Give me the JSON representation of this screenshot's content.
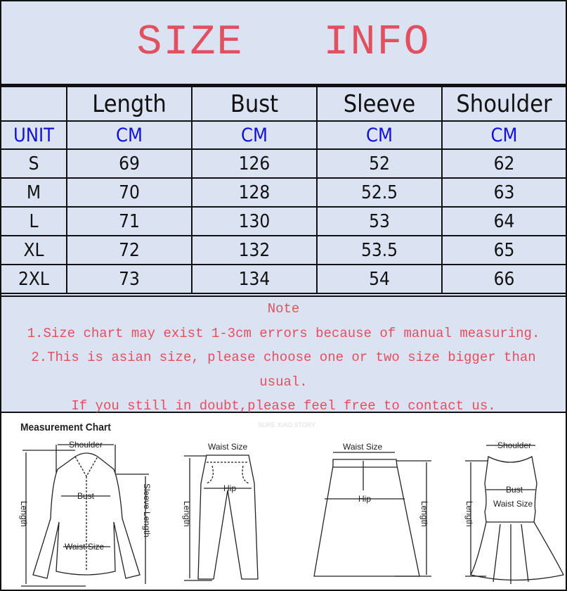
{
  "title": "SIZE   INFO",
  "colors": {
    "background": "#dbe3f2",
    "title_red": "#e0505e",
    "unit_blue": "#1010d8"
  },
  "table": {
    "headers": [
      "",
      "Length",
      "Bust",
      "Sleeve",
      "Shoulder"
    ],
    "units": [
      "UNIT",
      "CM",
      "CM",
      "CM",
      "CM"
    ],
    "rows": [
      [
        "S",
        "69",
        "126",
        "52",
        "62"
      ],
      [
        "M",
        "70",
        "128",
        "52.5",
        "63"
      ],
      [
        "L",
        "71",
        "130",
        "53",
        "64"
      ],
      [
        "XL",
        "72",
        "132",
        "53.5",
        "65"
      ],
      [
        "2XL",
        "73",
        "134",
        "54",
        "66"
      ]
    ]
  },
  "note": {
    "heading": "Note",
    "lines": [
      "1.Size chart may exist 1-3cm errors because of manual measuring.",
      "2.This is asian size, please choose one or two size bigger than",
      "usual.",
      "If you still in doubt,please feel free to contact us."
    ]
  },
  "measurement_chart": {
    "title": "Measurement Chart",
    "watermark": "SURE XIAO STORY",
    "shirt": {
      "shoulder": "Shoulder",
      "bust": "Bust",
      "waist": "Waist Size",
      "length": "Length",
      "sleeve": "Sleeve Length"
    },
    "pants": {
      "waist": "Waist Size",
      "hip": "Hip",
      "length": "Length"
    },
    "skirt": {
      "waist": "Waist Size",
      "hip": "Hip",
      "length": "Length"
    },
    "dress": {
      "shoulder": "Shoulder",
      "bust": "Bust",
      "waist": "Waist Size",
      "length": "Length"
    }
  }
}
